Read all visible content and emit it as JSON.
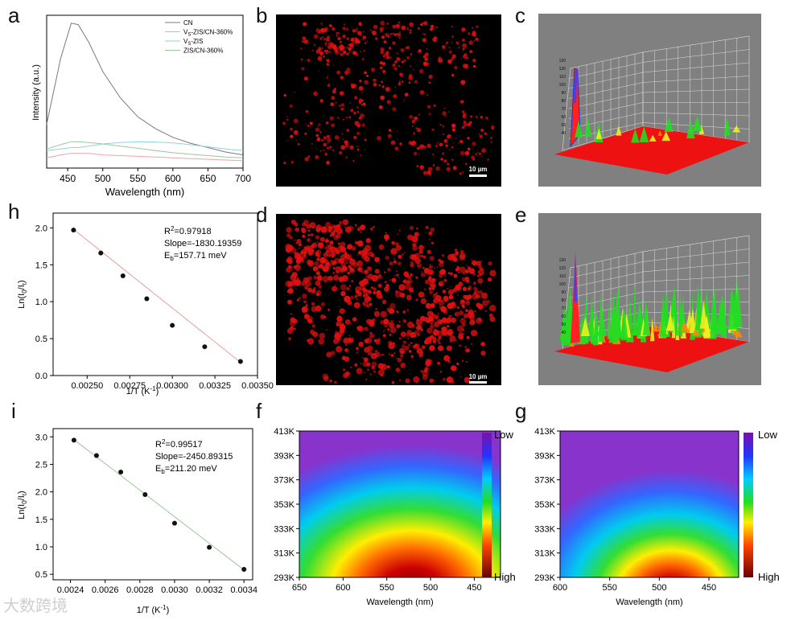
{
  "panel_labels": {
    "a": "a",
    "b": "b",
    "c": "c",
    "d": "d",
    "e": "e",
    "f": "f",
    "g": "g",
    "h": "h",
    "i": "i"
  },
  "watermark": "大数跨境",
  "colors": {
    "cn": "#7a7a7a",
    "vs_zis_cn": "#e8a6a6",
    "vs_zis": "#8fd3d8",
    "zis_cn": "#9cc79a",
    "fit_h": "#e8a0a0",
    "fit_i": "#9cc79a",
    "micro_bg": "#000000",
    "micro_red": "#e01010",
    "surface_bg": "#808080"
  },
  "chart_data": [
    {
      "id": "a",
      "type": "line",
      "xlabel": "Wavelength (nm)",
      "ylabel": "Intensity (a.u.)",
      "xlim": [
        420,
        700
      ],
      "xticks": [
        "450",
        "500",
        "550",
        "600",
        "650",
        "700"
      ],
      "x": [
        420,
        440,
        455,
        465,
        480,
        500,
        525,
        550,
        575,
        600,
        625,
        650,
        675,
        700
      ],
      "series": [
        {
          "name": "CN",
          "legend_parts": [
            "CN"
          ],
          "values": [
            0.3,
            0.75,
            0.99,
            0.98,
            0.86,
            0.66,
            0.48,
            0.35,
            0.27,
            0.21,
            0.17,
            0.14,
            0.11,
            0.09
          ]
        },
        {
          "name": "Vs-ZIS/CN-360%",
          "legend_parts": [
            "V",
            "S",
            "-ZIS/CN-360%"
          ],
          "values": [
            0.07,
            0.09,
            0.1,
            0.1,
            0.1,
            0.09,
            0.085,
            0.08,
            0.075,
            0.07,
            0.065,
            0.06,
            0.055,
            0.05
          ]
        },
        {
          "name": "Vs-ZIS",
          "legend_parts": [
            "V",
            "S",
            "-ZIS"
          ],
          "values": [
            0.12,
            0.13,
            0.14,
            0.14,
            0.15,
            0.165,
            0.175,
            0.18,
            0.178,
            0.172,
            0.16,
            0.145,
            0.13,
            0.12
          ]
        },
        {
          "name": "ZIS/CN-360%",
          "legend_parts": [
            "ZIS/CN-360%"
          ],
          "values": [
            0.13,
            0.16,
            0.18,
            0.18,
            0.175,
            0.165,
            0.15,
            0.135,
            0.12,
            0.105,
            0.095,
            0.085,
            0.075,
            0.07
          ]
        }
      ]
    },
    {
      "id": "h",
      "type": "scatter",
      "xlabel_parts": [
        "1/T (K",
        "-1",
        ")"
      ],
      "ylabel_parts": [
        "Ln(I",
        "0",
        "/I",
        "t",
        ")"
      ],
      "xlim": [
        0.0023,
        0.0035
      ],
      "ylim": [
        0,
        2.2
      ],
      "xticks": [
        0.0025,
        0.00275,
        0.003,
        0.00325,
        0.0035
      ],
      "xtick_labels": [
        "0.00250",
        "0.00275",
        "0.00300",
        "0.00325",
        "0.00350"
      ],
      "yticks": [
        0,
        0.5,
        1,
        1.5,
        2
      ],
      "ytick_labels": [
        "0.0",
        "0.5",
        "1.0",
        "1.5",
        "2.0"
      ],
      "x": [
        0.00242,
        0.00258,
        0.00271,
        0.00285,
        0.003,
        0.00319,
        0.0034
      ],
      "y": [
        1.97,
        1.66,
        1.35,
        1.04,
        0.68,
        0.39,
        0.19
      ],
      "fit": {
        "x": [
          0.00242,
          0.0034
        ],
        "y": [
          1.98,
          0.18
        ]
      },
      "annot": {
        "r2_label": "R",
        "r2_value": "=0.97918",
        "slope": "Slope=-1830.19359",
        "eb_value": "=157.71 meV"
      }
    },
    {
      "id": "i",
      "type": "scatter",
      "xlabel_parts": [
        "1/T (K",
        "-1",
        ")"
      ],
      "ylabel_parts": [
        "Ln(I",
        "0",
        "/I",
        "t",
        ")"
      ],
      "xlim": [
        0.0023,
        0.00345
      ],
      "ylim": [
        0.4,
        3.15
      ],
      "xticks": [
        0.0024,
        0.0026,
        0.0028,
        0.003,
        0.0032,
        0.0034
      ],
      "xtick_labels": [
        "0.0024",
        "0.0026",
        "0.0028",
        "0.0030",
        "0.0032",
        "0.0034"
      ],
      "yticks": [
        0.5,
        1,
        1.5,
        2,
        2.5,
        3
      ],
      "ytick_labels": [
        "0.5",
        "1.0",
        "1.5",
        "2.0",
        "2.5",
        "3.0"
      ],
      "x": [
        0.00242,
        0.00255,
        0.00269,
        0.00283,
        0.003,
        0.0032,
        0.0034
      ],
      "y": [
        2.94,
        2.66,
        2.36,
        1.95,
        1.43,
        0.99,
        0.59
      ],
      "fit": {
        "x": [
          0.00242,
          0.0034
        ],
        "y": [
          2.95,
          0.58
        ]
      },
      "annot": {
        "r2_label": "R",
        "r2_value": "=0.99517",
        "slope": "Slope=-2450.89315",
        "eb_value": "=211.20 meV"
      }
    },
    {
      "id": "f",
      "type": "heatmap",
      "xlabel": "Wavelength (nm)",
      "xlim": [
        650,
        420
      ],
      "xticks": [
        "650",
        "600",
        "550",
        "500",
        "450"
      ],
      "yticks": [
        "413K",
        "393K",
        "373K",
        "353K",
        "333K",
        "313K",
        "293K"
      ],
      "colorbar": {
        "top": "Low",
        "bottom": "High"
      }
    },
    {
      "id": "g",
      "type": "heatmap",
      "xlabel": "Wavelength (nm)",
      "xlim": [
        600,
        420
      ],
      "xticks": [
        "600",
        "550",
        "500",
        "450"
      ],
      "yticks": [
        "413K",
        "393K",
        "373K",
        "353K",
        "333K",
        "313K",
        "293K"
      ],
      "colorbar": {
        "top": "Low",
        "bottom": "High"
      }
    }
  ],
  "micrographs": [
    {
      "id": "b",
      "scalebar": "10 µm"
    },
    {
      "id": "d",
      "scalebar": "10 µm"
    }
  ],
  "surface_plots": [
    {
      "id": "c",
      "z_ticks": [
        "130",
        "120",
        "110",
        "100",
        "90",
        "80",
        "70",
        "60",
        "50",
        "40"
      ]
    },
    {
      "id": "e",
      "z_ticks": [
        "130",
        "120",
        "110",
        "100",
        "90",
        "80",
        "70",
        "60",
        "50",
        "40"
      ]
    }
  ]
}
